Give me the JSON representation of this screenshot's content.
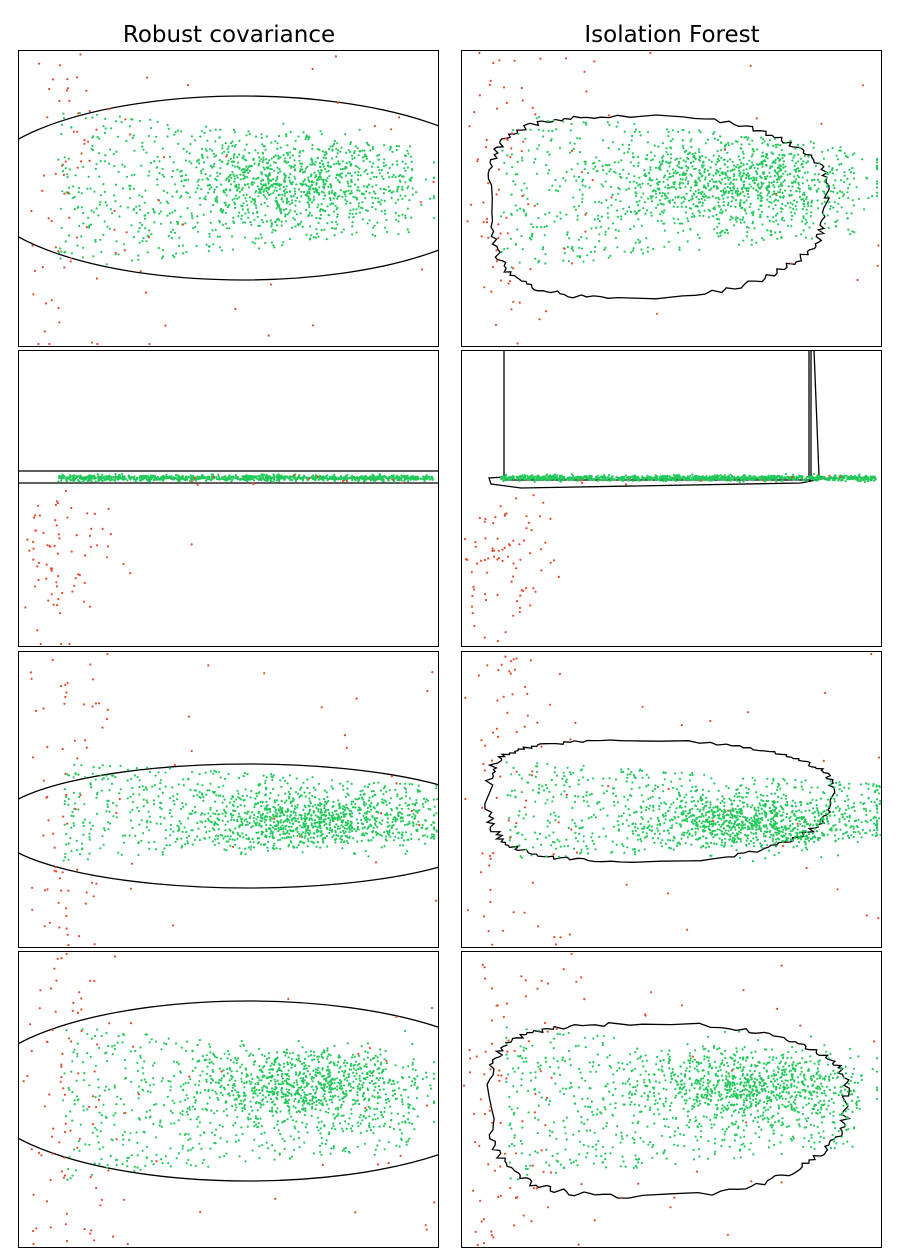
{
  "chart_data": [
    {
      "type": "scatter",
      "title": "Robust covariance",
      "method": "Robust covariance",
      "dataset": 1,
      "decision_boundary": "ellipse",
      "colors": {
        "inlier": "#22c95a",
        "outlier": "#e8482c",
        "boundary": "#000000"
      }
    },
    {
      "type": "scatter",
      "title": "Isolation Forest",
      "method": "Isolation Forest",
      "dataset": 1,
      "decision_boundary": "irregular contour",
      "colors": {
        "inlier": "#22c95a",
        "outlier": "#e8482c",
        "boundary": "#000000"
      }
    },
    {
      "type": "scatter",
      "title": "",
      "method": "Robust covariance",
      "dataset": 2,
      "decision_boundary": "thin horizontal band",
      "colors": {
        "inlier": "#22c95a",
        "outlier": "#e8482c",
        "boundary": "#000000"
      }
    },
    {
      "type": "scatter",
      "title": "",
      "method": "Isolation Forest",
      "dataset": 2,
      "decision_boundary": "horizontal band with vertical lines",
      "colors": {
        "inlier": "#22c95a",
        "outlier": "#e8482c",
        "boundary": "#000000"
      }
    },
    {
      "type": "scatter",
      "title": "",
      "method": "Robust covariance",
      "dataset": 3,
      "decision_boundary": "ellipse",
      "colors": {
        "inlier": "#22c95a",
        "outlier": "#e8482c",
        "boundary": "#000000"
      }
    },
    {
      "type": "scatter",
      "title": "",
      "method": "Isolation Forest",
      "dataset": 3,
      "decision_boundary": "irregular contour",
      "colors": {
        "inlier": "#22c95a",
        "outlier": "#e8482c",
        "boundary": "#000000"
      }
    },
    {
      "type": "scatter",
      "title": "",
      "method": "Robust covariance",
      "dataset": 4,
      "decision_boundary": "ellipse",
      "colors": {
        "inlier": "#22c95a",
        "outlier": "#e8482c",
        "boundary": "#000000"
      }
    },
    {
      "type": "scatter",
      "title": "",
      "method": "Isolation Forest",
      "dataset": 4,
      "decision_boundary": "irregular contour",
      "colors": {
        "inlier": "#22c95a",
        "outlier": "#e8482c",
        "boundary": "#000000"
      }
    }
  ]
}
